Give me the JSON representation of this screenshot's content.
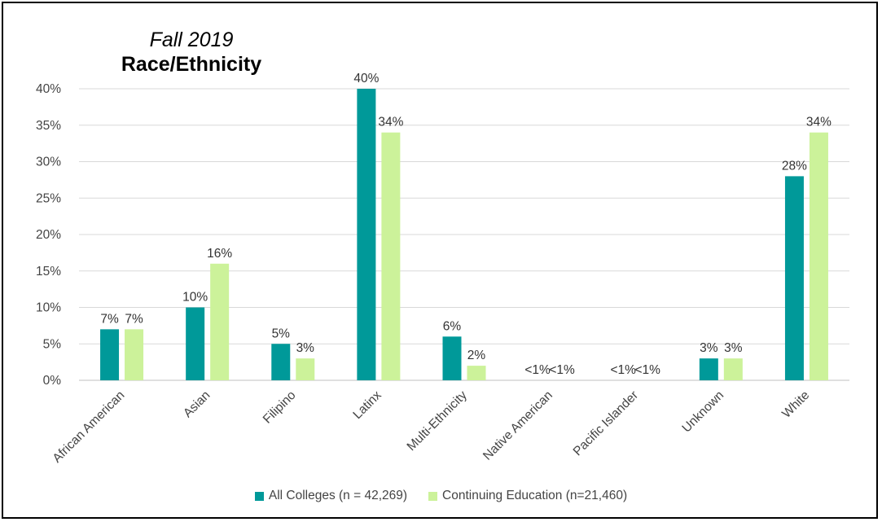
{
  "chart_data": {
    "type": "bar",
    "title": "Fall 2019",
    "subtitle": "Race/Ethnicity",
    "categories": [
      "African American",
      "Asian",
      "Filipino",
      "Latinx",
      "Multi-Ethnicity",
      "Native American",
      "Pacific Islander",
      "Unknown",
      "White"
    ],
    "series": [
      {
        "name": "All Colleges (n = 42,269)",
        "color": "#009999",
        "values": [
          7,
          10,
          5,
          40,
          6,
          0,
          0,
          3,
          28
        ],
        "labels": [
          "7%",
          "10%",
          "5%",
          "40%",
          "6%",
          "<1%",
          "<1%",
          "3%",
          "28%"
        ]
      },
      {
        "name": "Continuing Education (n=21,460)",
        "color": "#ccf29a",
        "values": [
          7,
          16,
          3,
          34,
          2,
          0,
          0,
          3,
          34
        ],
        "labels": [
          "7%",
          "16%",
          "3%",
          "34%",
          "2%",
          "<1%",
          "<1%",
          "3%",
          "34%"
        ]
      }
    ],
    "yticks": [
      "0%",
      "5%",
      "10%",
      "15%",
      "20%",
      "25%",
      "30%",
      "35%",
      "40%"
    ],
    "ylim": [
      0,
      40
    ],
    "grid": true,
    "legend_position": "bottom"
  }
}
